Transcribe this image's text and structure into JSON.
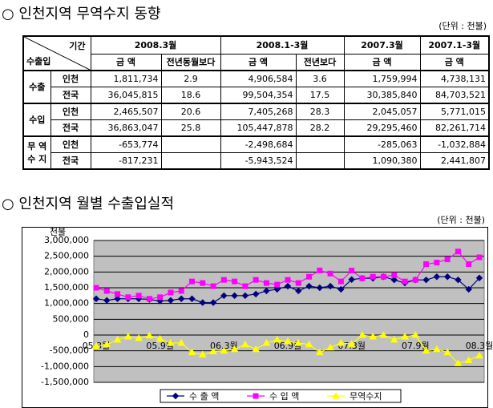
{
  "table_section": {
    "title": "○ 인천지역 무역수지 동향",
    "unit": "(단위 : 천불)",
    "header": {
      "period": "기간",
      "kind": "수출입",
      "periods": [
        "2008.3월",
        "2008.1-3월",
        "2007.3월",
        "2007.1-3월"
      ],
      "subheaders": [
        "금 액",
        "전년동월보다",
        "금 액",
        "전년보다",
        "금 액",
        "금 액"
      ]
    },
    "groups": [
      {
        "label": "수출",
        "rows": [
          {
            "region": "인천",
            "cells": [
              "1,811,734",
              "2.9",
              "4,906,584",
              "3.6",
              "1,759,994",
              "4,738,131"
            ]
          },
          {
            "region": "전국",
            "cells": [
              "36,045,815",
              "18.6",
              "99,504,354",
              "17.5",
              "30,385,840",
              "84,703,521"
            ]
          }
        ]
      },
      {
        "label": "수입",
        "rows": [
          {
            "region": "인천",
            "cells": [
              "2,465,507",
              "20.6",
              "7,405,268",
              "28.3",
              "2,045,057",
              "5,771,015"
            ]
          },
          {
            "region": "전국",
            "cells": [
              "36,863,047",
              "25.8",
              "105,447,878",
              "28.2",
              "29,295,460",
              "82,261,714"
            ]
          }
        ]
      },
      {
        "label": "무 역\n수 지",
        "rows": [
          {
            "region": "인천",
            "cells": [
              "-653,774",
              null,
              "-2,498,684",
              null,
              "-285,063",
              "-1,032,884"
            ]
          },
          {
            "region": "전국",
            "cells": [
              "-817,231",
              null,
              "-5,943,524",
              null,
              "1,090,380",
              "2,441,807"
            ]
          }
        ]
      }
    ]
  },
  "chart_data": {
    "type": "line",
    "title": "○ 인천지역 월별 수출입실적",
    "unit": "(단위 : 천불)",
    "y_label": "천불",
    "categories": [
      "05.3월",
      null,
      null,
      null,
      null,
      null,
      "05.9월",
      null,
      null,
      null,
      null,
      null,
      "06.3월",
      null,
      null,
      null,
      null,
      null,
      "06.9월",
      null,
      null,
      null,
      null,
      null,
      "07.3월",
      null,
      null,
      null,
      null,
      null,
      "07.9월",
      null,
      null,
      null,
      null,
      null,
      "08.3월"
    ],
    "ylim": [
      -1500000,
      3000000
    ],
    "yticks": [
      {
        "value": -1500000,
        "label": "-1,500,000"
      },
      {
        "value": -1000000,
        "label": "-1,000,000"
      },
      {
        "value": -500000,
        "label": "-500,000"
      },
      0,
      {
        "value": 500000,
        "label": "500,000"
      },
      {
        "value": 1000000,
        "label": "1,000,000"
      },
      {
        "value": 1500000,
        "label": "1,500,000"
      },
      {
        "value": 2000000,
        "label": "2,000,000"
      },
      {
        "value": 2500000,
        "label": "2,500,000"
      },
      {
        "value": 3000000,
        "label": "3,000,000"
      }
    ],
    "grid": true,
    "legend": "bottom",
    "series": [
      {
        "name": "수 출 액",
        "color": "#000080",
        "marker": "diamond",
        "values": [
          1150000,
          1100000,
          1150000,
          1150000,
          1150000,
          1130000,
          1080000,
          1100000,
          1150000,
          1150000,
          1030000,
          1030000,
          1250000,
          1250000,
          1250000,
          1300000,
          1400000,
          1450000,
          1550000,
          1400000,
          1550000,
          1500000,
          1550000,
          1450000,
          1759994,
          1800000,
          1800000,
          1850000,
          1750000,
          1650000,
          1750000,
          1750000,
          1850000,
          1850000,
          1750000,
          1450000,
          1811734
        ]
      },
      {
        "name": "수 입 액",
        "color": "#ff00ff",
        "marker": "square",
        "values": [
          1500000,
          1400000,
          1300000,
          1200000,
          1250000,
          1150000,
          1200000,
          1350000,
          1400000,
          1700000,
          1650000,
          1550000,
          1750000,
          1700000,
          1550000,
          1750000,
          1650000,
          1600000,
          1750000,
          1650000,
          1850000,
          2050000,
          1950000,
          1700000,
          2045057,
          1800000,
          1850000,
          1850000,
          1900000,
          1700000,
          1750000,
          2250000,
          2300000,
          2400000,
          2650000,
          2250000,
          2465507
        ]
      },
      {
        "name": "무역수지",
        "color": "#ffff00",
        "marker": "triangle",
        "values": [
          -350000,
          -300000,
          -150000,
          -50000,
          -100000,
          -20000,
          -120000,
          -250000,
          -250000,
          -550000,
          -620000,
          -520000,
          -500000,
          -450000,
          -300000,
          -450000,
          -250000,
          -150000,
          -200000,
          -250000,
          -300000,
          -550000,
          -400000,
          -250000,
          -285063,
          0,
          -50000,
          0,
          -150000,
          -50000,
          0,
          -500000,
          -450000,
          -550000,
          -900000,
          -800000,
          -653774
        ]
      }
    ]
  }
}
